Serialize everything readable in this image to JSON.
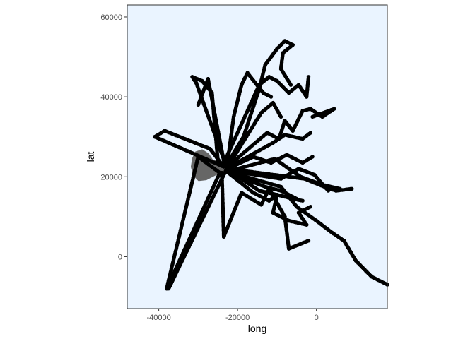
{
  "chart_data": {
    "type": "scatter",
    "title": "",
    "xlabel": "long",
    "ylabel": "lat",
    "xlim": [
      -48000,
      18000
    ],
    "ylim": [
      -13000,
      63000
    ],
    "x_ticks": [
      -40000,
      -20000,
      0
    ],
    "x_tick_labels": [
      "-40000",
      "-20000",
      "0"
    ],
    "y_ticks": [
      0,
      20000,
      40000,
      60000
    ],
    "y_tick_labels": [
      "0",
      "20000",
      "40000",
      "60000"
    ],
    "grid": false,
    "legend": "none",
    "panel_background": "#eaf4ff",
    "point_color": "#000000",
    "island_color": "#666666",
    "island_outline": [
      [
        -30500,
        26000
      ],
      [
        -29000,
        26500
      ],
      [
        -27500,
        25500
      ],
      [
        -26500,
        24000
      ],
      [
        -24500,
        23500
      ],
      [
        -23000,
        21500
      ],
      [
        -25500,
        20800
      ],
      [
        -28000,
        19500
      ],
      [
        -29800,
        19300
      ],
      [
        -31000,
        20500
      ],
      [
        -31500,
        22500
      ],
      [
        -31200,
        24500
      ]
    ],
    "tracks": [
      [
        [
          -23500,
          22500
        ],
        [
          -41000,
          30000
        ],
        [
          -38500,
          31500
        ],
        [
          -27000,
          27000
        ],
        [
          -23500,
          22500
        ]
      ],
      [
        [
          -24500,
          21000
        ],
        [
          -30000,
          25000
        ],
        [
          -38000,
          -8000
        ],
        [
          -24500,
          21000
        ]
      ],
      [
        [
          -22500,
          22500
        ],
        [
          -37500,
          -8000
        ]
      ],
      [
        [
          -24000,
          21000
        ],
        [
          -23500,
          5000
        ],
        [
          -19000,
          16000
        ],
        [
          -14000,
          13000
        ],
        [
          -12000,
          17000
        ],
        [
          -8000,
          10000
        ],
        [
          -7000,
          2000
        ],
        [
          -2000,
          4000
        ]
      ],
      [
        [
          -22000,
          21500
        ],
        [
          -14500,
          16500
        ],
        [
          -10000,
          15500
        ],
        [
          -11000,
          11000
        ],
        [
          -7000,
          9000
        ],
        [
          -2500,
          8000
        ],
        [
          -4500,
          11000
        ],
        [
          -1500,
          12500
        ]
      ],
      [
        [
          -23000,
          23000
        ],
        [
          -30500,
          43500
        ],
        [
          -31500,
          45000
        ],
        [
          -29000,
          44000
        ],
        [
          -26500,
          41000
        ],
        [
          -25000,
          24000
        ]
      ],
      [
        [
          -23500,
          24000
        ],
        [
          -27500,
          44500
        ],
        [
          -30000,
          38000
        ]
      ],
      [
        [
          -22500,
          23500
        ],
        [
          -18500,
          30000
        ],
        [
          -14500,
          42000
        ],
        [
          -13000,
          48000
        ],
        [
          -10000,
          52000
        ],
        [
          -8000,
          54000
        ],
        [
          -6000,
          53000
        ],
        [
          -8500,
          51000
        ],
        [
          -9000,
          47000
        ],
        [
          -6500,
          43000
        ]
      ],
      [
        [
          -22500,
          24000
        ],
        [
          -21000,
          35000
        ],
        [
          -19000,
          43000
        ],
        [
          -17500,
          46000
        ],
        [
          -13500,
          41000
        ],
        [
          -11500,
          40000
        ]
      ],
      [
        [
          -23000,
          24500
        ],
        [
          -14500,
          43000
        ],
        [
          -12000,
          45000
        ],
        [
          -10000,
          44000
        ],
        [
          -7000,
          41000
        ],
        [
          -4500,
          43000
        ],
        [
          -2500,
          40000
        ],
        [
          -2000,
          45000
        ]
      ],
      [
        [
          -22000,
          23000
        ],
        [
          -12500,
          31000
        ],
        [
          -9500,
          29500
        ],
        [
          -8000,
          34000
        ],
        [
          -6000,
          31500
        ],
        [
          -3500,
          36500
        ],
        [
          -1500,
          37000
        ],
        [
          1500,
          35000
        ],
        [
          4500,
          37000
        ],
        [
          -1000,
          35000
        ]
      ],
      [
        [
          -22000,
          22500
        ],
        [
          -11000,
          28500
        ],
        [
          -8000,
          30500
        ],
        [
          -3500,
          29500
        ],
        [
          -1500,
          31000
        ]
      ],
      [
        [
          -22500,
          22000
        ],
        [
          -3000,
          19500
        ],
        [
          2000,
          17500
        ],
        [
          5000,
          16500
        ],
        [
          9000,
          17000
        ]
      ],
      [
        [
          -22000,
          21500
        ],
        [
          -9000,
          19500
        ],
        [
          -4500,
          22000
        ],
        [
          -500,
          20500
        ],
        [
          3000,
          16500
        ]
      ],
      [
        [
          -22500,
          22000
        ],
        [
          -16000,
          25000
        ],
        [
          -11500,
          23500
        ],
        [
          -7500,
          25500
        ],
        [
          -3500,
          23500
        ],
        [
          -1000,
          25000
        ]
      ],
      [
        [
          -22000,
          21000
        ],
        [
          -13000,
          17500
        ],
        [
          -9000,
          16500
        ],
        [
          -5000,
          14500
        ]
      ],
      [
        [
          -21500,
          21000
        ],
        [
          -9000,
          17500
        ],
        [
          -5000,
          12500
        ],
        [
          0,
          9000
        ],
        [
          4000,
          6000
        ],
        [
          7000,
          4000
        ],
        [
          10000,
          -1000
        ],
        [
          14000,
          -5000
        ],
        [
          18000,
          -7000
        ]
      ],
      [
        [
          -22000,
          21500
        ],
        [
          -10500,
          24500
        ],
        [
          -7000,
          22000
        ],
        [
          -4000,
          20000
        ],
        [
          1500,
          18000
        ],
        [
          6000,
          17000
        ]
      ],
      [
        [
          -23000,
          21500
        ],
        [
          -16000,
          16000
        ],
        [
          -12000,
          14000
        ],
        [
          -10000,
          15500
        ],
        [
          -6000,
          14500
        ],
        [
          -3500,
          14000
        ]
      ],
      [
        [
          -22500,
          22500
        ],
        [
          -14000,
          36000
        ],
        [
          -11000,
          38500
        ],
        [
          -9000,
          35000
        ]
      ]
    ]
  }
}
